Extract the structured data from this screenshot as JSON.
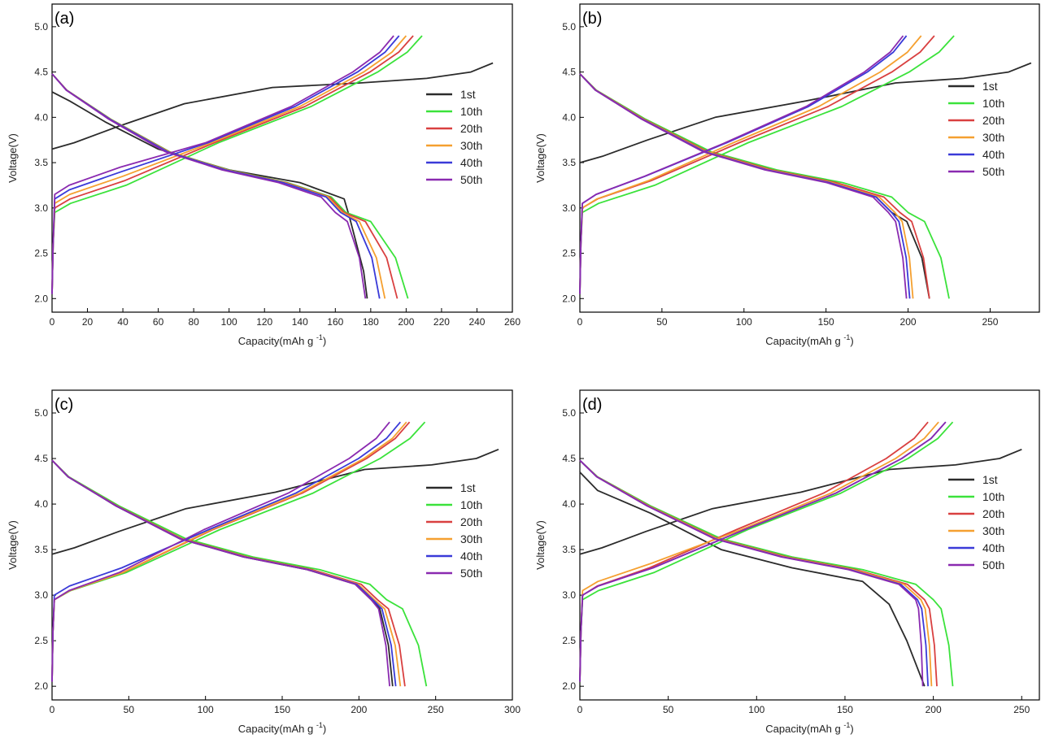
{
  "figure": {
    "ylabel": "Voltage(V)",
    "xlabel_main": "Capacity(mAh g",
    "xlabel_sup": "-1",
    "xlabel_tail": ")",
    "series_names": [
      "1st",
      "10th",
      "20th",
      "30th",
      "40th",
      "50th"
    ],
    "series_colors": [
      "#2b2b2b",
      "#3be23b",
      "#d94040",
      "#f5a030",
      "#3a3ad8",
      "#8a2ab0"
    ]
  },
  "chart_data": [
    {
      "panel": "(a)",
      "type": "line",
      "xlabel": "Capacity(mAh g-1)",
      "ylabel": "Voltage(V)",
      "xlim": [
        0,
        260
      ],
      "ylim": [
        1.85,
        5.25
      ],
      "xticks": [
        0,
        20,
        40,
        60,
        80,
        100,
        120,
        140,
        160,
        180,
        200,
        220,
        240,
        260
      ],
      "yticks": [
        2.0,
        2.5,
        3.0,
        3.5,
        4.0,
        4.5,
        5.0
      ],
      "legend_position": "right-middle",
      "series": [
        {
          "name": "1st",
          "charge_end": 249,
          "charge_start_v": 3.65,
          "discharge": [
            [
              0,
              4.28
            ],
            [
              10,
              4.18
            ],
            [
              30,
              3.95
            ],
            [
              60,
              3.65
            ],
            [
              100,
              3.42
            ],
            [
              140,
              3.28
            ],
            [
              165,
              3.1
            ],
            [
              168,
              2.9
            ],
            [
              172,
              2.6
            ],
            [
              176,
              2.3
            ],
            [
              178,
              2.0
            ]
          ]
        },
        {
          "name": "10th",
          "charge_end": 209,
          "charge_start_v": 2.95,
          "discharge_end": 201,
          "knee": 166
        },
        {
          "name": "20th",
          "charge_end": 204,
          "charge_start_v": 3.0,
          "discharge_end": 195,
          "knee": 165
        },
        {
          "name": "30th",
          "charge_end": 200,
          "charge_start_v": 3.05,
          "discharge_end": 188,
          "knee": 164
        },
        {
          "name": "40th",
          "charge_end": 196,
          "charge_start_v": 3.1,
          "discharge_end": 185,
          "knee": 163
        },
        {
          "name": "50th",
          "charge_end": 193,
          "charge_start_v": 3.15,
          "discharge_end": 177,
          "knee": 160
        }
      ]
    },
    {
      "panel": "(b)",
      "type": "line",
      "xlabel": "Capacity(mAh g-1)",
      "ylabel": "Voltage(V)",
      "xlim": [
        0,
        280
      ],
      "ylim": [
        1.85,
        5.25
      ],
      "xticks": [
        0,
        50,
        100,
        150,
        200,
        250
      ],
      "yticks": [
        2.0,
        2.5,
        3.0,
        3.5,
        4.0,
        4.5,
        5.0
      ],
      "legend_position": "right-middle",
      "series": [
        {
          "name": "1st",
          "charge_end": 275,
          "charge_start_v": 3.5,
          "discharge_end": 213,
          "knee": 190
        },
        {
          "name": "10th",
          "charge_end": 228,
          "charge_start_v": 2.95,
          "discharge_end": 225,
          "knee": 200
        },
        {
          "name": "20th",
          "charge_end": 216,
          "charge_start_v": 3.0,
          "discharge_end": 213,
          "knee": 195
        },
        {
          "name": "30th",
          "charge_end": 208,
          "charge_start_v": 3.0,
          "discharge_end": 203,
          "knee": 192
        },
        {
          "name": "40th",
          "charge_end": 199,
          "charge_start_v": 3.05,
          "discharge_end": 201,
          "knee": 190
        },
        {
          "name": "50th",
          "charge_end": 197,
          "charge_start_v": 3.05,
          "discharge_end": 199,
          "knee": 188
        }
      ]
    },
    {
      "panel": "(c)",
      "type": "line",
      "xlabel": "Capacity(mAh g-1)",
      "ylabel": "Voltage(V)",
      "xlim": [
        0,
        300
      ],
      "ylim": [
        1.85,
        5.25
      ],
      "xticks": [
        0,
        50,
        100,
        150,
        200,
        250,
        300
      ],
      "yticks": [
        2.0,
        2.5,
        3.0,
        3.5,
        4.0,
        4.5,
        5.0
      ],
      "legend_position": "right-middle",
      "series": [
        {
          "name": "1st",
          "charge_end": 291,
          "charge_start_v": 3.45,
          "discharge_end": 222,
          "knee": 208
        },
        {
          "name": "10th",
          "charge_end": 243,
          "charge_start_v": 2.95,
          "discharge_end": 244,
          "knee": 218
        },
        {
          "name": "20th",
          "charge_end": 233,
          "charge_start_v": 2.95,
          "discharge_end": 230,
          "knee": 212
        },
        {
          "name": "30th",
          "charge_end": 231,
          "charge_start_v": 2.95,
          "discharge_end": 227,
          "knee": 210
        },
        {
          "name": "40th",
          "charge_end": 227,
          "charge_start_v": 3.0,
          "discharge_end": 224,
          "knee": 209
        },
        {
          "name": "50th",
          "charge_end": 220,
          "charge_start_v": 2.95,
          "discharge_end": 220,
          "knee": 208
        }
      ]
    },
    {
      "panel": "(d)",
      "type": "line",
      "xlabel": "Capacity(mAh g-1)",
      "ylabel": "Voltage(V)",
      "xlim": [
        0,
        260
      ],
      "ylim": [
        1.85,
        5.25
      ],
      "xticks": [
        0,
        50,
        100,
        150,
        200,
        250
      ],
      "yticks": [
        2.0,
        2.5,
        3.0,
        3.5,
        4.0,
        4.5,
        5.0
      ],
      "legend_position": "right-middle",
      "series": [
        {
          "name": "1st",
          "charge_end": 250,
          "charge_start_v": 3.45,
          "discharge": [
            [
              0,
              4.35
            ],
            [
              10,
              4.15
            ],
            [
              40,
              3.9
            ],
            [
              80,
              3.5
            ],
            [
              120,
              3.3
            ],
            [
              160,
              3.15
            ],
            [
              175,
              2.9
            ],
            [
              185,
              2.5
            ],
            [
              195,
              2.0
            ]
          ]
        },
        {
          "name": "10th",
          "charge_end": 211,
          "charge_start_v": 2.95,
          "discharge_end": 211,
          "knee": 200
        },
        {
          "name": "20th",
          "charge_end": 197,
          "charge_start_v": 3.0,
          "discharge_end": 202,
          "knee": 195
        },
        {
          "name": "30th",
          "charge_end": 203,
          "charge_start_v": 3.05,
          "discharge_end": 199,
          "knee": 193
        },
        {
          "name": "40th",
          "charge_end": 207,
          "charge_start_v": 3.0,
          "discharge_end": 197,
          "knee": 191
        },
        {
          "name": "50th",
          "charge_end": 207,
          "charge_start_v": 3.0,
          "discharge_end": 194,
          "knee": 190
        }
      ]
    }
  ]
}
